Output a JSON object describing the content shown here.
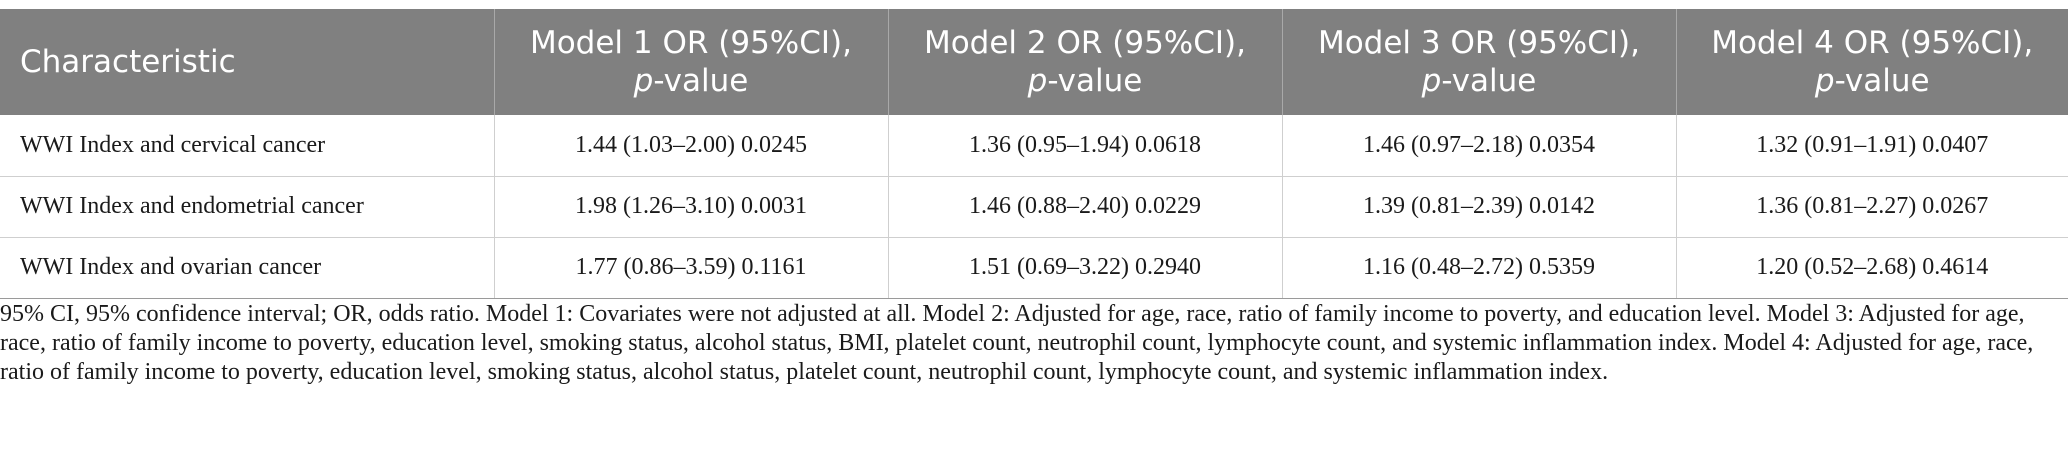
{
  "table": {
    "headers": [
      {
        "text": "Characteristic",
        "italic_part": "",
        "suffix": ""
      },
      {
        "text": "Model 1 OR (95%CI), ",
        "italic_part": "p",
        "suffix": "-value"
      },
      {
        "text": "Model 2 OR (95%CI), ",
        "italic_part": "p",
        "suffix": "-value"
      },
      {
        "text": "Model 3 OR (95%CI), ",
        "italic_part": "p",
        "suffix": "-value"
      },
      {
        "text": "Model 4 OR (95%CI), ",
        "italic_part": "p",
        "suffix": "-value"
      }
    ],
    "rows": [
      [
        "WWI Index and cervical cancer",
        "1.44 (1.03–2.00) 0.0245",
        "1.36 (0.95–1.94) 0.0618",
        "1.46 (0.97–2.18) 0.0354",
        "1.32 (0.91–1.91) 0.0407"
      ],
      [
        "WWI Index and endometrial cancer",
        "1.98 (1.26–3.10) 0.0031",
        "1.46 (0.88–2.40) 0.0229",
        "1.39 (0.81–2.39) 0.0142",
        "1.36 (0.81–2.27) 0.0267"
      ],
      [
        "WWI Index and ovarian cancer",
        "1.77 (0.86–3.59) 0.1161",
        "1.51 (0.69–3.22) 0.2940",
        "1.16 (0.48–2.72) 0.5359",
        "1.20 (0.52–2.68) 0.4614"
      ]
    ]
  },
  "footnote": "95% CI, 95% confidence interval; OR, odds ratio. Model 1: Covariates were not adjusted at all. Model 2: Adjusted for age, race, ratio of family income to poverty, and education level. Model 3: Adjusted for age, race, ratio of family income to poverty, education level, smoking status, alcohol status, BMI, platelet count, neutrophil count, lymphocyte count, and systemic inflammation index. Model 4: Adjusted for age, race, ratio of family income to poverty, education level, smoking status, alcohol status, platelet count, neutrophil count, lymphocyte count, and systemic inflammation index.",
  "colors": {
    "header_bg": "#808080",
    "header_text": "#ffffff",
    "body_text": "#1a1a1a",
    "grid": "#cfcfcf"
  }
}
